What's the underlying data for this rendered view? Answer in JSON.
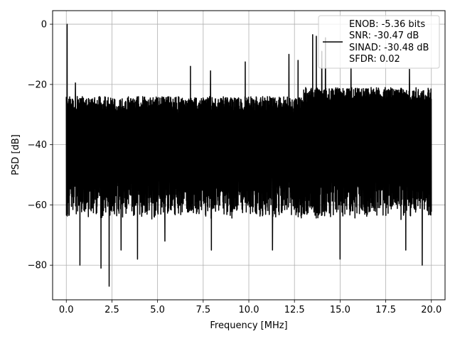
{
  "chart_data": {
    "type": "line",
    "xlabel": "Frequency [MHz]",
    "ylabel": "PSD [dB]",
    "xlim": [
      -0.75,
      20.75
    ],
    "ylim": [
      -91.5,
      4.5
    ],
    "xticks": [
      0.0,
      2.5,
      5.0,
      7.5,
      10.0,
      12.5,
      15.0,
      17.5,
      20.0
    ],
    "xtick_labels": [
      "0.0",
      "2.5",
      "5.0",
      "7.5",
      "10.0",
      "12.5",
      "15.0",
      "17.5",
      "20.0"
    ],
    "yticks": [
      0,
      -20,
      -40,
      -60,
      -80
    ],
    "ytick_labels": [
      "0",
      "−20",
      "−40",
      "−60",
      "−80"
    ],
    "grid": true,
    "legend_position": "top-right",
    "legend": [
      "ENOB: -5.36 bits",
      "SNR: -30.47 dB",
      "SINAD: -30.48 dB",
      "SFDR: 0.02"
    ],
    "series": [
      {
        "color": "#000000",
        "x_range": [
          0.0,
          20.0
        ],
        "noise_top_envelope_db": -24,
        "noise_bottom_envelope_db": -62,
        "peaks": [
          {
            "x": 0.05,
            "y": 0.0
          },
          {
            "x": 0.5,
            "y": -19.5
          },
          {
            "x": 3.9,
            "y": -17.0
          },
          {
            "x": 6.8,
            "y": -14.0
          },
          {
            "x": 7.9,
            "y": -15.5
          },
          {
            "x": 9.8,
            "y": -12.5
          },
          {
            "x": 12.2,
            "y": -10.0
          },
          {
            "x": 12.7,
            "y": -12.0
          },
          {
            "x": 13.5,
            "y": -3.5
          },
          {
            "x": 13.7,
            "y": -4.0
          },
          {
            "x": 14.0,
            "y": -9.0
          },
          {
            "x": 14.2,
            "y": -4.5
          },
          {
            "x": 15.6,
            "y": -14.5
          },
          {
            "x": 18.8,
            "y": -15.0
          }
        ],
        "dips": [
          {
            "x": 0.15,
            "y": -63.5
          },
          {
            "x": 0.75,
            "y": -80.0
          },
          {
            "x": 1.9,
            "y": -81.0
          },
          {
            "x": 2.35,
            "y": -87.0
          },
          {
            "x": 3.0,
            "y": -75.0
          },
          {
            "x": 3.9,
            "y": -78.0
          },
          {
            "x": 5.4,
            "y": -72.0
          },
          {
            "x": 7.95,
            "y": -75.0
          },
          {
            "x": 11.3,
            "y": -75.0
          },
          {
            "x": 15.0,
            "y": -78.0
          },
          {
            "x": 18.6,
            "y": -75.0
          },
          {
            "x": 19.5,
            "y": -80.0
          }
        ]
      }
    ]
  }
}
